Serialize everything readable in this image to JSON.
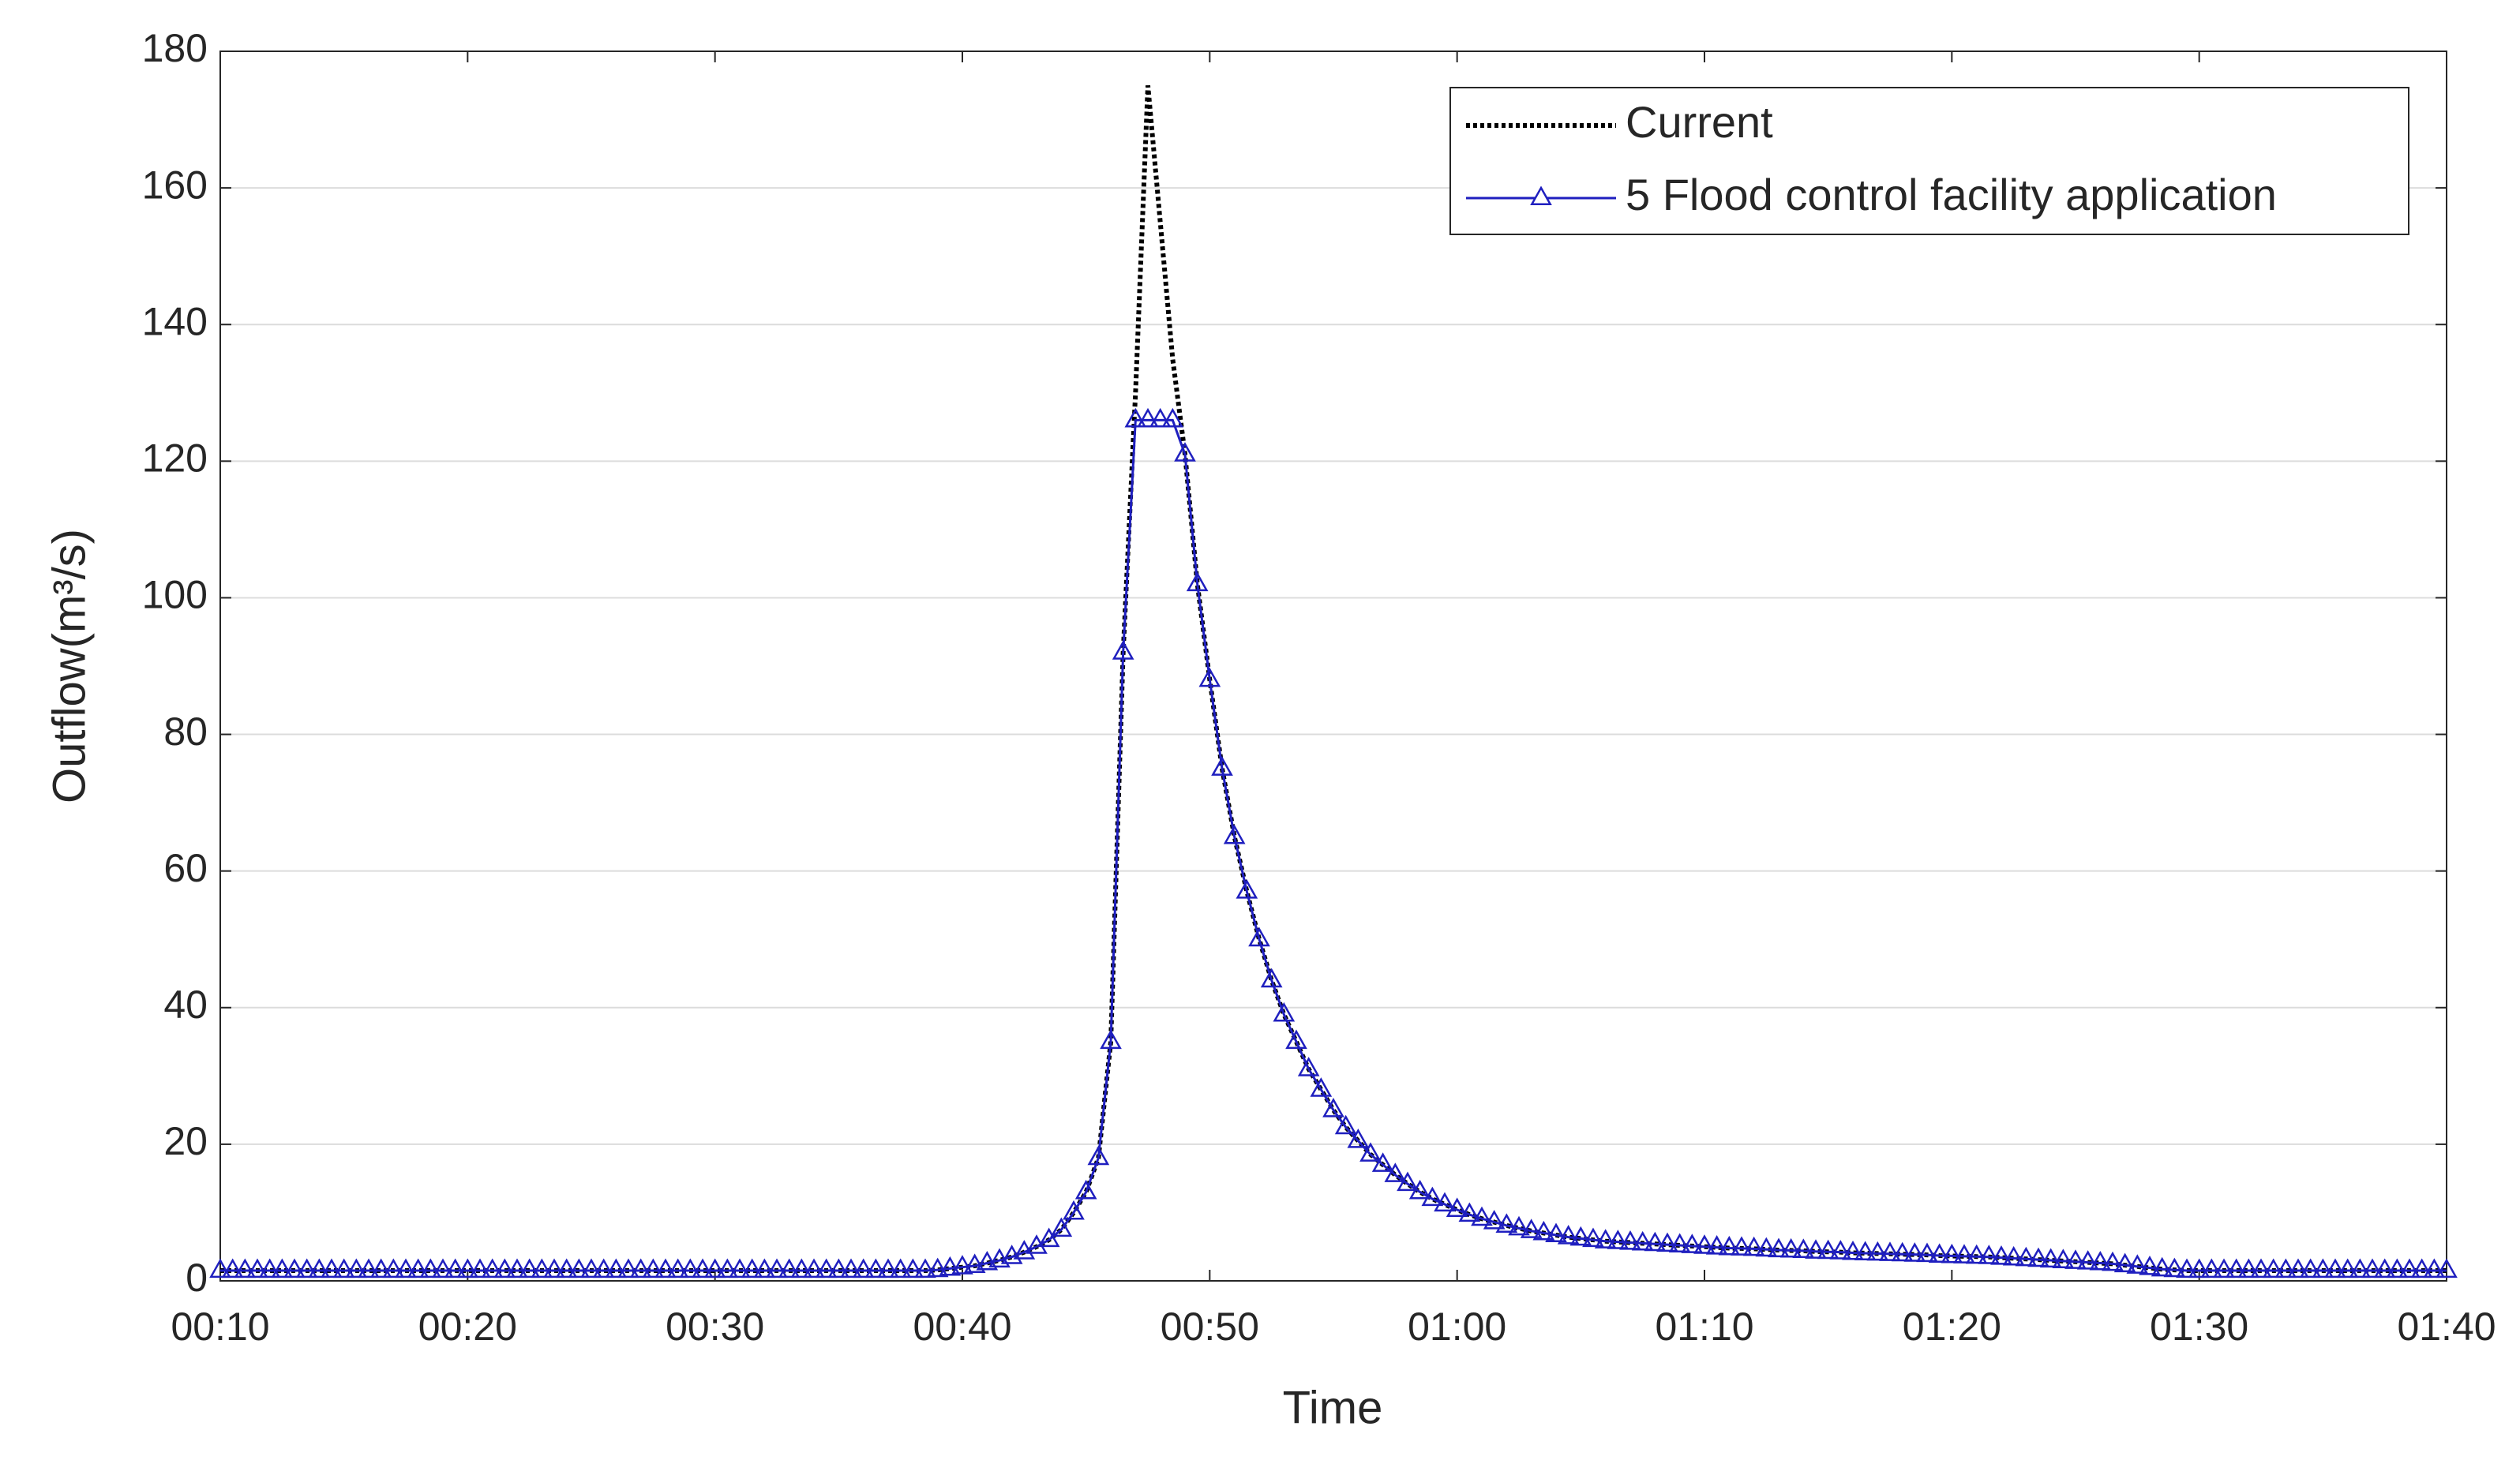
{
  "chart_data": {
    "type": "line",
    "xlabel": "Time",
    "ylabel": "Outflow(m³/s)",
    "x": [
      10,
      10.5,
      11,
      11.5,
      12,
      12.5,
      13,
      13.5,
      14,
      14.5,
      15,
      15.5,
      16,
      16.5,
      17,
      17.5,
      18,
      18.5,
      19,
      19.5,
      20,
      20.5,
      21,
      21.5,
      22,
      22.5,
      23,
      23.5,
      24,
      24.5,
      25,
      25.5,
      26,
      26.5,
      27,
      27.5,
      28,
      28.5,
      29,
      29.5,
      30,
      30.5,
      31,
      31.5,
      32,
      32.5,
      33,
      33.5,
      34,
      34.5,
      35,
      35.5,
      36,
      36.5,
      37,
      37.5,
      38,
      38.5,
      39,
      39.5,
      40,
      40.5,
      41,
      41.5,
      42,
      42.5,
      43,
      43.5,
      44,
      44.5,
      45,
      45.5,
      46,
      46.5,
      47,
      47.5,
      48,
      48.5,
      49,
      49.5,
      50,
      50.5,
      51,
      51.5,
      52,
      52.5,
      53,
      53.5,
      54,
      54.5,
      55,
      55.5,
      56,
      56.5,
      57,
      57.5,
      58,
      58.5,
      59,
      59.5,
      60,
      60.5,
      61,
      61.5,
      62,
      62.5,
      63,
      63.5,
      64,
      64.5,
      65,
      65.5,
      66,
      66.5,
      67,
      67.5,
      68,
      68.5,
      69,
      69.5,
      70,
      70.5,
      71,
      71.5,
      72,
      72.5,
      73,
      73.5,
      74,
      74.5,
      75,
      75.5,
      76,
      76.5,
      77,
      77.5,
      78,
      78.5,
      79,
      79.5,
      80,
      80.5,
      81,
      81.5,
      82,
      82.5,
      83,
      83.5,
      84,
      84.5,
      85,
      85.5,
      86,
      86.5,
      87,
      87.5,
      88,
      88.5,
      89,
      89.5,
      90,
      90.5,
      91,
      91.5,
      92,
      92.5,
      93,
      93.5,
      94,
      94.5,
      95,
      95.5,
      96,
      96.5,
      97,
      97.5,
      98,
      98.5,
      99,
      99.5,
      100
    ],
    "series": [
      {
        "name": "Current",
        "color": "#000000",
        "line_style": "dotted",
        "marker": null,
        "values": [
          1.5,
          1.5,
          1.5,
          1.5,
          1.5,
          1.5,
          1.5,
          1.5,
          1.5,
          1.5,
          1.5,
          1.5,
          1.5,
          1.5,
          1.5,
          1.5,
          1.5,
          1.5,
          1.5,
          1.5,
          1.5,
          1.5,
          1.5,
          1.5,
          1.5,
          1.5,
          1.5,
          1.5,
          1.5,
          1.5,
          1.5,
          1.5,
          1.5,
          1.5,
          1.5,
          1.5,
          1.5,
          1.5,
          1.5,
          1.5,
          1.5,
          1.5,
          1.5,
          1.5,
          1.5,
          1.5,
          1.5,
          1.5,
          1.5,
          1.5,
          1.5,
          1.5,
          1.5,
          1.5,
          1.5,
          1.5,
          1.5,
          1.5,
          1.6,
          1.8,
          2,
          2.2,
          2.6,
          3,
          3.5,
          4.2,
          5,
          6,
          7.5,
          10,
          13,
          18,
          35,
          92,
          130,
          175,
          155,
          135,
          121,
          102,
          88,
          75,
          65,
          57,
          50,
          44,
          39,
          35,
          31,
          28,
          25,
          22.5,
          20.5,
          18.5,
          17,
          15.5,
          14.2,
          13,
          12,
          11.2,
          10.4,
          9.7,
          9.1,
          8.6,
          8.1,
          7.7,
          7.3,
          7,
          6.7,
          6.4,
          6.2,
          6,
          5.8,
          5.7,
          5.6,
          5.5,
          5.4,
          5.3,
          5.2,
          5.1,
          5,
          4.9,
          4.8,
          4.75,
          4.7,
          4.6,
          4.5,
          4.45,
          4.4,
          4.3,
          4.25,
          4.2,
          4.1,
          4.05,
          4,
          3.95,
          3.9,
          3.85,
          3.8,
          3.7,
          3.65,
          3.6,
          3.55,
          3.5,
          3.4,
          3.3,
          3.2,
          3.1,
          3,
          2.9,
          2.8,
          2.7,
          2.6,
          2.5,
          2.3,
          2.1,
          1.9,
          1.7,
          1.6,
          1.5,
          1.5,
          1.5,
          1.5,
          1.5,
          1.5,
          1.5,
          1.5,
          1.5,
          1.5,
          1.5,
          1.5,
          1.5,
          1.5,
          1.5,
          1.5,
          1.5,
          1.5,
          1.5,
          1.5,
          1.5,
          1.5
        ]
      },
      {
        "name": "5 Flood control facility application",
        "color": "#1f1fbf",
        "line_style": "solid",
        "marker": "triangle",
        "values": [
          1.5,
          1.5,
          1.5,
          1.5,
          1.5,
          1.5,
          1.5,
          1.5,
          1.5,
          1.5,
          1.5,
          1.5,
          1.5,
          1.5,
          1.5,
          1.5,
          1.5,
          1.5,
          1.5,
          1.5,
          1.5,
          1.5,
          1.5,
          1.5,
          1.5,
          1.5,
          1.5,
          1.5,
          1.5,
          1.5,
          1.5,
          1.5,
          1.5,
          1.5,
          1.5,
          1.5,
          1.5,
          1.5,
          1.5,
          1.5,
          1.5,
          1.5,
          1.5,
          1.5,
          1.5,
          1.5,
          1.5,
          1.5,
          1.5,
          1.5,
          1.5,
          1.5,
          1.5,
          1.5,
          1.5,
          1.5,
          1.5,
          1.5,
          1.6,
          1.8,
          2,
          2.2,
          2.6,
          3,
          3.5,
          4.2,
          5,
          6,
          7.5,
          10,
          13,
          18,
          35,
          92,
          126,
          126,
          126,
          126,
          121,
          102,
          88,
          75,
          65,
          57,
          50,
          44,
          39,
          35,
          31,
          28,
          25,
          22.5,
          20.5,
          18.5,
          17,
          15.5,
          14.2,
          13,
          12,
          11.2,
          10.4,
          9.7,
          9.1,
          8.6,
          8.1,
          7.7,
          7.3,
          7,
          6.7,
          6.4,
          6.2,
          6,
          5.8,
          5.7,
          5.6,
          5.5,
          5.4,
          5.3,
          5.2,
          5.1,
          5,
          4.9,
          4.8,
          4.75,
          4.7,
          4.6,
          4.5,
          4.45,
          4.4,
          4.3,
          4.25,
          4.2,
          4.1,
          4.05,
          4,
          3.95,
          3.9,
          3.85,
          3.8,
          3.7,
          3.65,
          3.6,
          3.55,
          3.5,
          3.4,
          3.3,
          3.2,
          3.1,
          3,
          2.9,
          2.8,
          2.7,
          2.6,
          2.5,
          2.3,
          2.1,
          1.9,
          1.7,
          1.6,
          1.5,
          1.5,
          1.5,
          1.5,
          1.5,
          1.5,
          1.5,
          1.5,
          1.5,
          1.5,
          1.5,
          1.5,
          1.5,
          1.5,
          1.5,
          1.5,
          1.5,
          1.5,
          1.5,
          1.5,
          1.5,
          1.5
        ]
      }
    ],
    "xlim": [
      10,
      100
    ],
    "xticks": [
      {
        "value": 10,
        "label": "00:10"
      },
      {
        "value": 20,
        "label": "00:20"
      },
      {
        "value": 30,
        "label": "00:30"
      },
      {
        "value": 40,
        "label": "00:40"
      },
      {
        "value": 50,
        "label": "00:50"
      },
      {
        "value": 60,
        "label": "01:00"
      },
      {
        "value": 70,
        "label": "01:10"
      },
      {
        "value": 80,
        "label": "01:20"
      },
      {
        "value": 90,
        "label": "01:30"
      },
      {
        "value": 100,
        "label": "01:40"
      }
    ],
    "ylim": [
      0,
      180
    ],
    "yticks": [
      0,
      20,
      40,
      60,
      80,
      100,
      120,
      140,
      160,
      180
    ],
    "grid": true,
    "legend": "upper right"
  }
}
